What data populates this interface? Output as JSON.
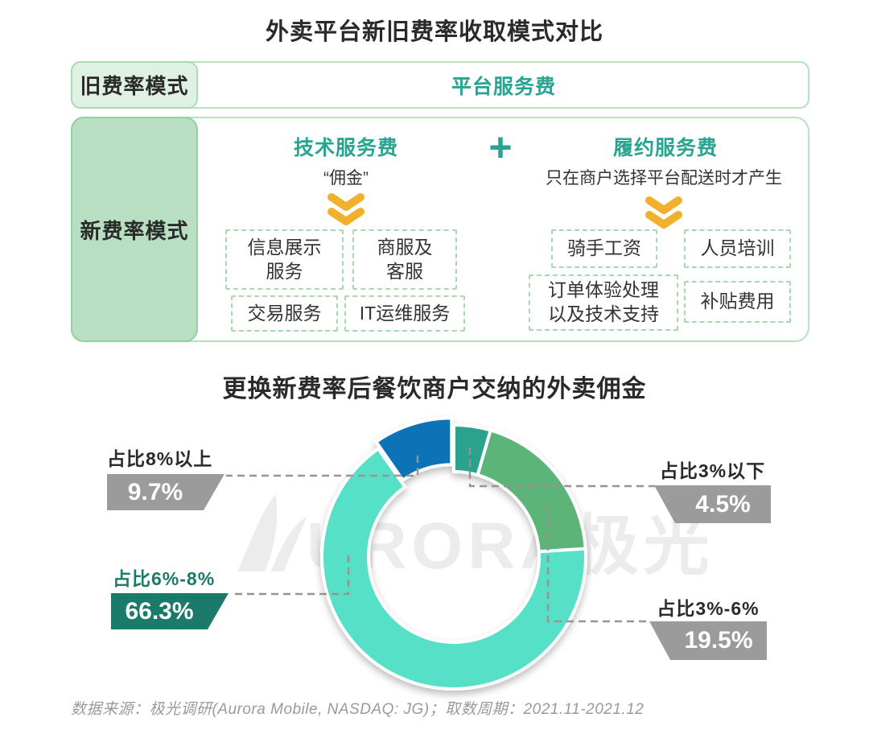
{
  "page_title": "外卖平台新旧费率收取模式对比",
  "old_model": {
    "row_label": "旧费率模式",
    "content": "平台服务费"
  },
  "new_model": {
    "row_label": "新费率模式",
    "plus_symbol": "+",
    "accent_color": "#27A492",
    "tech": {
      "title": "技术服务费",
      "subtitle": "“佣金”",
      "chevron_icon": "double-chevron-down",
      "chevron_color": "#F3B02C",
      "items": [
        "信息展示\n服务",
        "商服及\n客服",
        "交易服务",
        "IT运维服务"
      ]
    },
    "fulfillment": {
      "title": "履约服务费",
      "subtitle": "只在商户选择平台配送时才产生",
      "chevron_icon": "double-chevron-down",
      "chevron_color": "#F3B02C",
      "items": [
        "骑手工资",
        "人员培训",
        "订单体验处理\n以及技术支持",
        "补贴费用"
      ]
    }
  },
  "chart_data": {
    "type": "pie",
    "subtype": "donut",
    "title": "更换新费率后餐饮商户交纳的外卖佣金",
    "unit": "%",
    "start_angle_deg": 0,
    "direction": "clockwise",
    "segments": [
      {
        "label": "占比3%以下",
        "value": 4.5,
        "color": "#2BA28D"
      },
      {
        "label": "占比3%-6%",
        "value": 19.5,
        "color": "#5CB478"
      },
      {
        "label": "占比6%-8%",
        "value": 66.3,
        "color": "#57E0C8"
      },
      {
        "label": "占比8%以上",
        "value": 9.7,
        "color": "#1173B7",
        "exploded": true
      }
    ],
    "callouts": {
      "top_left": {
        "label": "占比8%以上",
        "value_label": "9.7%",
        "box_color": "#9B9B9B",
        "text_color": "#2A2A2A"
      },
      "top_right": {
        "label": "占比3%以下",
        "value_label": "4.5%",
        "box_color": "#9B9B9B",
        "text_color": "#2A2A2A"
      },
      "bottom_left": {
        "label": "占比6%-8%",
        "value_label": "66.3%",
        "box_color": "#1B7A6A",
        "text_color": "#1B7A6A"
      },
      "bottom_right": {
        "label": "占比3%-6%",
        "value_label": "19.5%",
        "box_color": "#9B9B9B",
        "text_color": "#2A2A2A"
      }
    }
  },
  "watermark": {
    "logo": "aurora-logo",
    "text": "URORA极光"
  },
  "footer": {
    "text": "数据来源：极光调研(Aurora Mobile, NASDAQ: JG)；取数周期：2021.11-2021.12"
  }
}
